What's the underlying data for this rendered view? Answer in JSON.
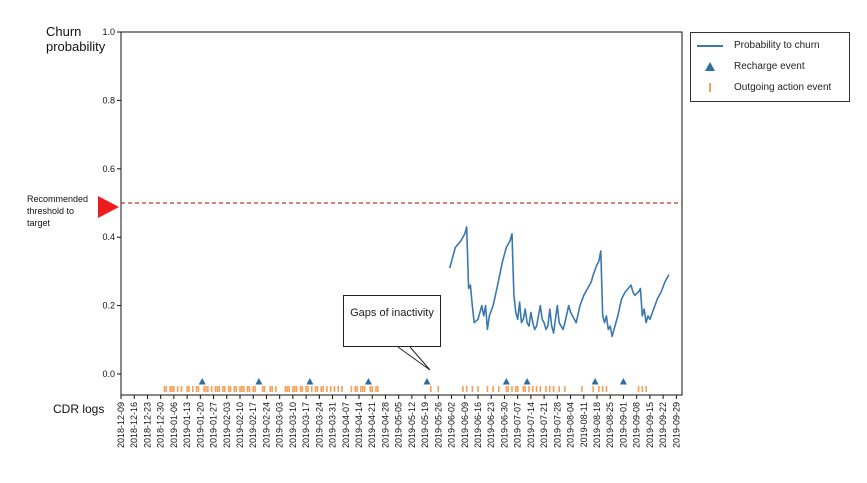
{
  "chart_data": {
    "type": "line",
    "ylabel": "Churn probability",
    "ylim": [
      0,
      1
    ],
    "yticks": [
      "0.0",
      "0.2",
      "0.4",
      "0.6",
      "0.8",
      "1.0"
    ],
    "x_type": "date",
    "xlim": [
      "2018-12-09",
      "2019-10-02"
    ],
    "xticks": [
      "2018-12-09",
      "2018-12-16",
      "2018-12-23",
      "2018-12-30",
      "2019-01-06",
      "2019-01-13",
      "2019-01-20",
      "2019-01-27",
      "2019-02-03",
      "2019-02-10",
      "2019-02-17",
      "2019-02-24",
      "2019-03-03",
      "2019-03-10",
      "2019-03-17",
      "2019-03-24",
      "2019-03-31",
      "2019-04-07",
      "2019-04-14",
      "2019-04-21",
      "2019-04-28",
      "2019-05-05",
      "2019-05-12",
      "2019-05-19",
      "2019-05-26",
      "2019-06-02",
      "2019-06-09",
      "2019-06-16",
      "2019-06-23",
      "2019-06-30",
      "2019-07-07",
      "2019-07-14",
      "2019-07-21",
      "2019-07-28",
      "2019-08-04",
      "2019-08-11",
      "2019-08-18",
      "2019-08-25",
      "2019-09-01",
      "2019-09-08",
      "2019-09-15",
      "2019-09-22",
      "2019-09-29"
    ],
    "threshold": {
      "value": 0.5,
      "label": "Recommended threshold to target",
      "color": "#c0392b"
    },
    "series": [
      {
        "name": "Probability to churn",
        "color": "#3a78b0",
        "points": [
          [
            "2019-06-01",
            0.31
          ],
          [
            "2019-06-04",
            0.37
          ],
          [
            "2019-06-07",
            0.39
          ],
          [
            "2019-06-09",
            0.41
          ],
          [
            "2019-06-10",
            0.43
          ],
          [
            "2019-06-11",
            0.25
          ],
          [
            "2019-06-12",
            0.26
          ],
          [
            "2019-06-13",
            0.2
          ],
          [
            "2019-06-14",
            0.15
          ],
          [
            "2019-06-16",
            0.16
          ],
          [
            "2019-06-17",
            0.18
          ],
          [
            "2019-06-18",
            0.2
          ],
          [
            "2019-06-19",
            0.17
          ],
          [
            "2019-06-20",
            0.2
          ],
          [
            "2019-06-21",
            0.13
          ],
          [
            "2019-06-22",
            0.17
          ],
          [
            "2019-06-24",
            0.2
          ],
          [
            "2019-06-26",
            0.25
          ],
          [
            "2019-06-29",
            0.33
          ],
          [
            "2019-07-01",
            0.37
          ],
          [
            "2019-07-03",
            0.39
          ],
          [
            "2019-07-04",
            0.41
          ],
          [
            "2019-07-05",
            0.23
          ],
          [
            "2019-07-06",
            0.18
          ],
          [
            "2019-07-07",
            0.16
          ],
          [
            "2019-07-08",
            0.21
          ],
          [
            "2019-07-09",
            0.15
          ],
          [
            "2019-07-10",
            0.16
          ],
          [
            "2019-07-11",
            0.19
          ],
          [
            "2019-07-12",
            0.15
          ],
          [
            "2019-07-13",
            0.14
          ],
          [
            "2019-07-14",
            0.18
          ],
          [
            "2019-07-15",
            0.15
          ],
          [
            "2019-07-16",
            0.13
          ],
          [
            "2019-07-17",
            0.14
          ],
          [
            "2019-07-19",
            0.2
          ],
          [
            "2019-07-20",
            0.16
          ],
          [
            "2019-07-21",
            0.15
          ],
          [
            "2019-07-22",
            0.13
          ],
          [
            "2019-07-23",
            0.14
          ],
          [
            "2019-07-24",
            0.19
          ],
          [
            "2019-07-25",
            0.14
          ],
          [
            "2019-07-26",
            0.12
          ],
          [
            "2019-07-27",
            0.16
          ],
          [
            "2019-07-28",
            0.2
          ],
          [
            "2019-07-29",
            0.15
          ],
          [
            "2019-07-30",
            0.14
          ],
          [
            "2019-07-31",
            0.13
          ],
          [
            "2019-08-01",
            0.15
          ],
          [
            "2019-08-03",
            0.2
          ],
          [
            "2019-08-04",
            0.18
          ],
          [
            "2019-08-06",
            0.16
          ],
          [
            "2019-08-07",
            0.15
          ],
          [
            "2019-08-09",
            0.2
          ],
          [
            "2019-08-11",
            0.23
          ],
          [
            "2019-08-13",
            0.25
          ],
          [
            "2019-08-15",
            0.27
          ],
          [
            "2019-08-16",
            0.29
          ],
          [
            "2019-08-18",
            0.32
          ],
          [
            "2019-08-19",
            0.33
          ],
          [
            "2019-08-20",
            0.36
          ],
          [
            "2019-08-21",
            0.17
          ],
          [
            "2019-08-22",
            0.15
          ],
          [
            "2019-08-23",
            0.17
          ],
          [
            "2019-08-24",
            0.13
          ],
          [
            "2019-08-25",
            0.14
          ],
          [
            "2019-08-26",
            0.11
          ],
          [
            "2019-08-27",
            0.13
          ],
          [
            "2019-08-29",
            0.17
          ],
          [
            "2019-08-31",
            0.22
          ],
          [
            "2019-09-02",
            0.24
          ],
          [
            "2019-09-05",
            0.26
          ],
          [
            "2019-09-06",
            0.24
          ],
          [
            "2019-09-07",
            0.23
          ],
          [
            "2019-09-09",
            0.24
          ],
          [
            "2019-09-10",
            0.25
          ],
          [
            "2019-09-11",
            0.17
          ],
          [
            "2019-09-12",
            0.19
          ],
          [
            "2019-09-13",
            0.15
          ],
          [
            "2019-09-14",
            0.17
          ],
          [
            "2019-09-15",
            0.16
          ],
          [
            "2019-09-17",
            0.19
          ],
          [
            "2019-09-19",
            0.22
          ],
          [
            "2019-09-21",
            0.24
          ],
          [
            "2019-09-23",
            0.27
          ],
          [
            "2019-09-25",
            0.29
          ]
        ]
      },
      {
        "name": "Recharge event",
        "color": "#2e6da4",
        "marker": "triangle",
        "x": [
          "2019-01-21",
          "2019-02-20",
          "2019-03-19",
          "2019-04-19",
          "2019-05-20",
          "2019-07-01",
          "2019-07-12",
          "2019-08-17",
          "2019-09-01"
        ]
      },
      {
        "name": "Outgoing action event",
        "color": "#f5a05a",
        "marker": "tick",
        "x": [
          "2019-01-01",
          "2019-01-02",
          "2019-01-04",
          "2019-01-05",
          "2019-01-06",
          "2019-01-08",
          "2019-01-10",
          "2019-01-13",
          "2019-01-14",
          "2019-01-16",
          "2019-01-18",
          "2019-01-19",
          "2019-01-22",
          "2019-01-23",
          "2019-01-24",
          "2019-01-26",
          "2019-01-28",
          "2019-01-29",
          "2019-01-30",
          "2019-02-01",
          "2019-02-02",
          "2019-02-04",
          "2019-02-05",
          "2019-02-07",
          "2019-02-08",
          "2019-02-10",
          "2019-02-11",
          "2019-02-12",
          "2019-02-14",
          "2019-02-15",
          "2019-02-17",
          "2019-02-18",
          "2019-02-22",
          "2019-02-23",
          "2019-02-26",
          "2019-02-27",
          "2019-03-01",
          "2019-03-06",
          "2019-03-07",
          "2019-03-08",
          "2019-03-10",
          "2019-03-11",
          "2019-03-12",
          "2019-03-14",
          "2019-03-15",
          "2019-03-17",
          "2019-03-18",
          "2019-03-20",
          "2019-03-22",
          "2019-03-23",
          "2019-03-25",
          "2019-03-26",
          "2019-03-28",
          "2019-03-30",
          "2019-04-01",
          "2019-04-03",
          "2019-04-05",
          "2019-04-10",
          "2019-04-12",
          "2019-04-13",
          "2019-04-15",
          "2019-04-16",
          "2019-04-17",
          "2019-04-20",
          "2019-04-21",
          "2019-04-23",
          "2019-04-24",
          "2019-05-22",
          "2019-05-26",
          "2019-06-08",
          "2019-06-10",
          "2019-06-13",
          "2019-06-16",
          "2019-06-21",
          "2019-06-24",
          "2019-06-27",
          "2019-07-01",
          "2019-07-02",
          "2019-07-04",
          "2019-07-06",
          "2019-07-07",
          "2019-07-10",
          "2019-07-11",
          "2019-07-13",
          "2019-07-15",
          "2019-07-17",
          "2019-07-19",
          "2019-07-22",
          "2019-07-24",
          "2019-07-26",
          "2019-07-29",
          "2019-08-01",
          "2019-08-10",
          "2019-08-16",
          "2019-08-19",
          "2019-08-21",
          "2019-08-23",
          "2019-09-09",
          "2019-09-11",
          "2019-09-13"
        ]
      }
    ],
    "cdr_label": "CDR logs",
    "annotation": {
      "text": "Gaps of inactivity"
    },
    "legend": {
      "position": "outside-right"
    }
  },
  "colors": {
    "threshold_arrow": "#ee1c1c",
    "axis": "#111111"
  }
}
